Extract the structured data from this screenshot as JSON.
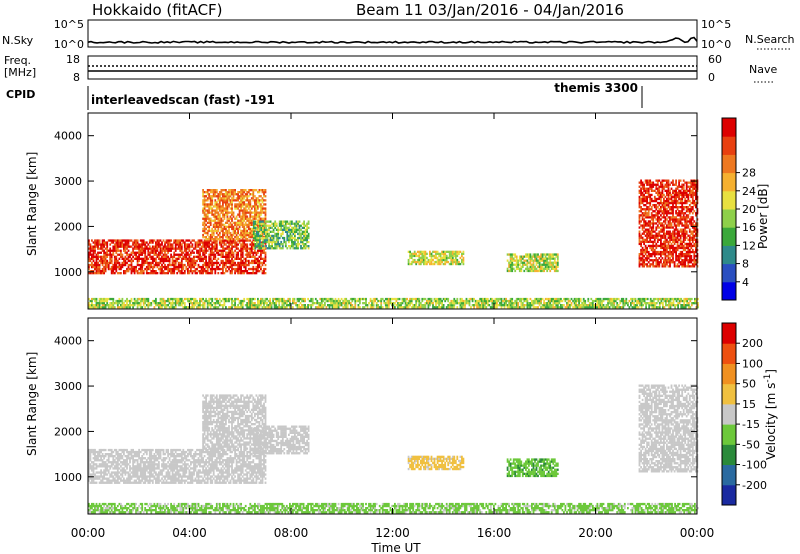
{
  "header": {
    "station": "Hokkaido (fitACF)",
    "beam_date": "Beam 11  03/Jan/2016 - 04/Jan/2016"
  },
  "strips": {
    "nsky_label": "N.Sky",
    "nsky_ticks": [
      "10^5",
      "10^0"
    ],
    "nsearch_label": "N.Search",
    "nsearch_ticks": [
      "10^5",
      "10^0"
    ],
    "freq_label": "Freq.",
    "freq_unit": "[MHz]",
    "freq_ticks": [
      "18",
      "8"
    ],
    "nave_label": "Nave",
    "nave_ticks": [
      "60",
      "0"
    ],
    "cpid_label": "CPID",
    "cpid_segments": [
      {
        "label": "interleavedscan (fast) -191",
        "start_hour": 0,
        "end_hour": 22
      },
      {
        "label": "themis 3300",
        "start_hour": 22,
        "end_hour": 24
      }
    ]
  },
  "chart_data": [
    {
      "type": "heatmap",
      "title": "",
      "xlabel": "Time UT",
      "ylabel": "Slant Range [km]",
      "xlim": [
        0,
        24
      ],
      "ylim": [
        180,
        4500
      ],
      "x_ticks": [
        "00:00",
        "04:00",
        "08:00",
        "12:00",
        "16:00",
        "20:00",
        "00:00"
      ],
      "y_ticks": [
        1000,
        2000,
        3000,
        4000
      ],
      "colorbar": {
        "label": "Power [dB]",
        "ticks": [
          "4",
          "8",
          "12",
          "16",
          "20",
          "24",
          "28"
        ],
        "range": [
          0,
          30
        ],
        "colors": [
          "#0000e6",
          "#2a4fc0",
          "#2e8a8a",
          "#3aa83a",
          "#8ed04a",
          "#e8e040",
          "#f5b030",
          "#ee7820",
          "#e84010",
          "#dd0000"
        ]
      },
      "features": [
        {
          "name": "near-range ground band",
          "t_start": 0.0,
          "t_end": 24.0,
          "range_km": [
            200,
            400
          ],
          "value": 14
        },
        {
          "name": "evening echo band",
          "t_start": 0.0,
          "t_end": 7.0,
          "range_km": [
            950,
            1700
          ],
          "value": 27
        },
        {
          "name": "rising echo arc",
          "t_start": 4.5,
          "t_end": 7.0,
          "range_km": [
            1700,
            2800
          ],
          "value": 22
        },
        {
          "name": "post-midnight patch",
          "t_start": 6.5,
          "t_end": 8.7,
          "range_km": [
            1500,
            2100
          ],
          "value": 12
        },
        {
          "name": "patch 1",
          "t_start": 12.6,
          "t_end": 14.8,
          "range_km": [
            1150,
            1450
          ],
          "value": 16
        },
        {
          "name": "patch 2",
          "t_start": 16.5,
          "t_end": 18.5,
          "range_km": [
            1000,
            1400
          ],
          "value": 15
        },
        {
          "name": "morning echo band",
          "t_start": 21.7,
          "t_end": 24.0,
          "range_km": [
            1100,
            3000
          ],
          "value": 27
        }
      ]
    },
    {
      "type": "heatmap",
      "title": "",
      "xlabel": "Time UT",
      "ylabel": "Slant Range [km]",
      "xlim": [
        0,
        24
      ],
      "ylim": [
        180,
        4500
      ],
      "x_ticks": [
        "00:00",
        "04:00",
        "08:00",
        "12:00",
        "16:00",
        "20:00",
        "00:00"
      ],
      "y_ticks": [
        1000,
        2000,
        3000,
        4000
      ],
      "colorbar": {
        "label": "Velocity [m s^-1]",
        "ticks": [
          "200",
          "100",
          "50",
          "15",
          "-15",
          "-50",
          "-100",
          "-200"
        ],
        "range": [
          -250,
          250
        ],
        "colors": [
          "#1a2aa0",
          "#2a6aa0",
          "#2a8a3a",
          "#6cc83a",
          "#c8c8c8",
          "#f0c040",
          "#f09020",
          "#ee5010",
          "#dd0000"
        ]
      },
      "features": [
        {
          "name": "near-range ground band",
          "t_start": 0.0,
          "t_end": 24.0,
          "range_km": [
            200,
            400
          ],
          "value": -40
        },
        {
          "name": "evening echo band",
          "t_start": 0.0,
          "t_end": 7.0,
          "range_km": [
            850,
            1600
          ],
          "value": 0
        },
        {
          "name": "rising echo arc",
          "t_start": 4.5,
          "t_end": 7.0,
          "range_km": [
            1600,
            2800
          ],
          "value": 0
        },
        {
          "name": "post-midnight patch",
          "t_start": 6.5,
          "t_end": 8.7,
          "range_km": [
            1500,
            2100
          ],
          "value": 0
        },
        {
          "name": "patch 1",
          "t_start": 12.6,
          "t_end": 14.8,
          "range_km": [
            1150,
            1450
          ],
          "value": 40
        },
        {
          "name": "patch 2",
          "t_start": 16.5,
          "t_end": 18.5,
          "range_km": [
            1000,
            1400
          ],
          "value": -70
        },
        {
          "name": "morning echo band",
          "t_start": 21.7,
          "t_end": 24.0,
          "range_km": [
            1100,
            3000
          ],
          "value": 0
        }
      ]
    }
  ]
}
